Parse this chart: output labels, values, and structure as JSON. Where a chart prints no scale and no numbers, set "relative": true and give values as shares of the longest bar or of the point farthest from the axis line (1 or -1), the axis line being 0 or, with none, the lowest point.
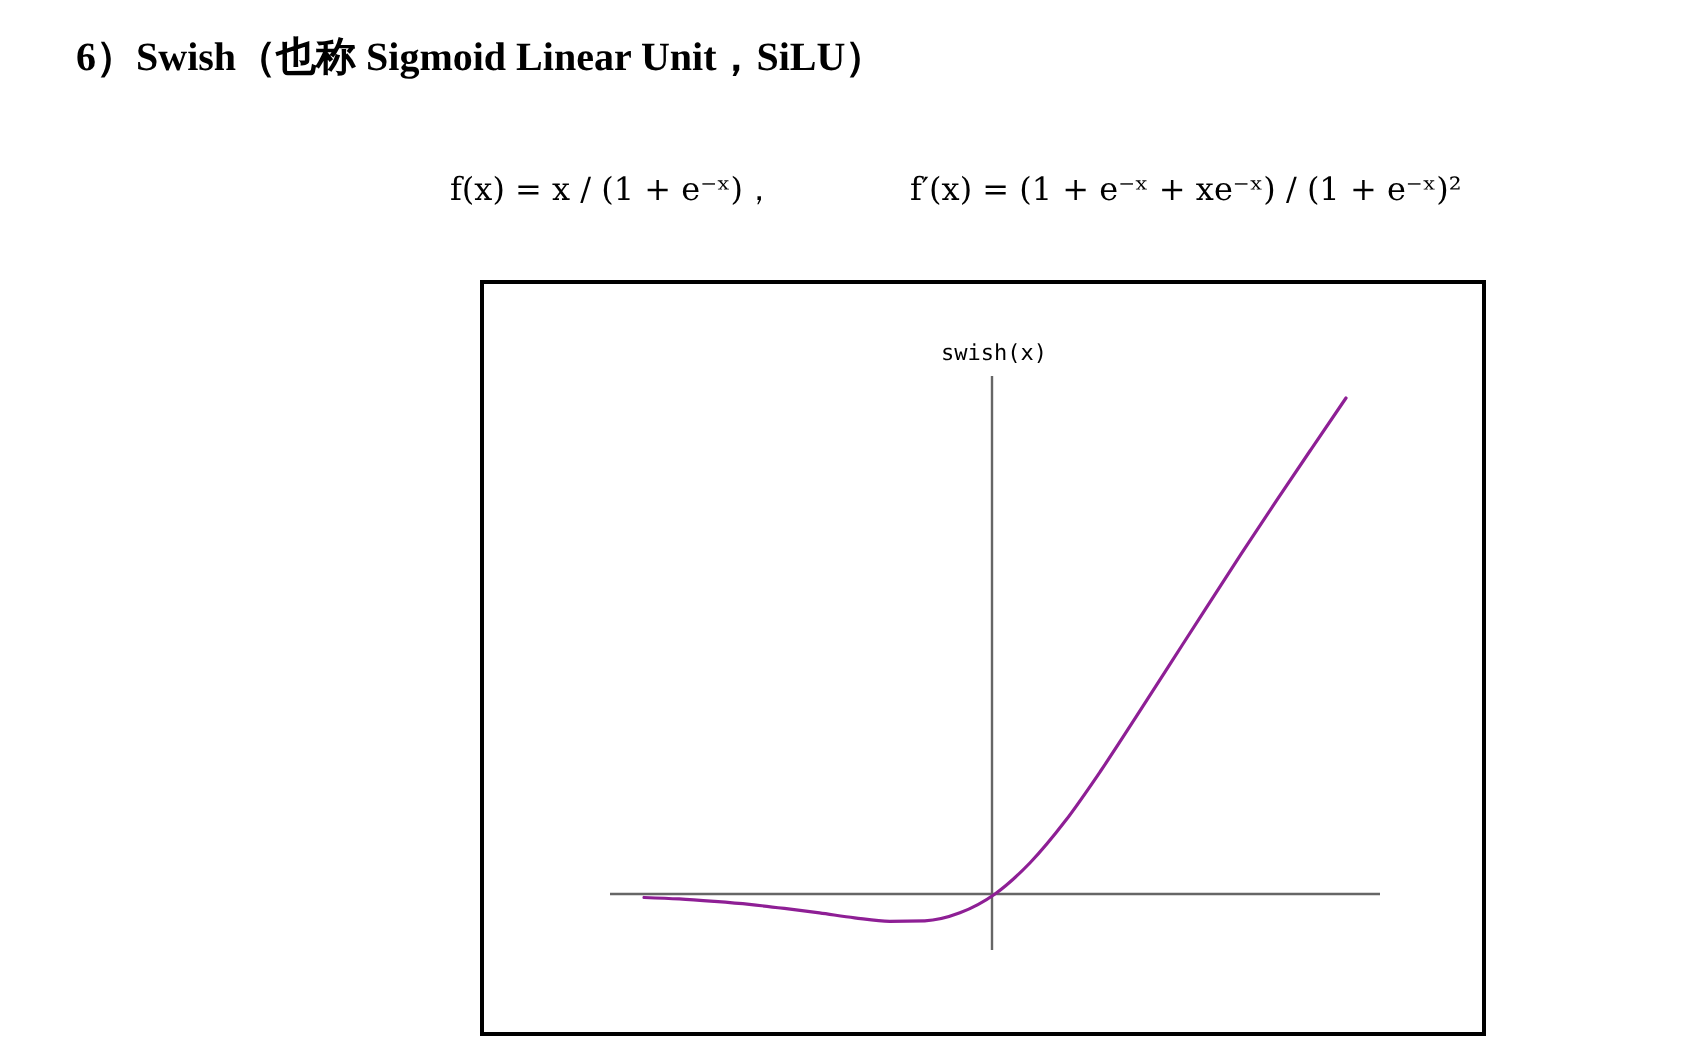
{
  "chart_data": {
    "type": "line",
    "title": "6）Swish（也称 Sigmoid Linear Unit，SiLU）",
    "annotations": [
      "f(x) = x / (1 + e⁻ˣ)，",
      "f′(x) = (1 + e⁻ˣ + xe⁻ˣ) / (1 + e⁻ˣ)²"
    ],
    "ylabel": "swish(x)",
    "relative": true,
    "color": "#8e1f95",
    "categories": [
      null,
      null,
      null,
      null,
      null,
      null,
      null,
      null,
      null,
      null,
      null,
      null,
      null,
      null,
      null,
      null,
      null,
      null,
      null,
      null,
      null
    ],
    "values": [
      -0.007,
      -0.01,
      -0.015,
      -0.021,
      -0.029,
      -0.038,
      -0.048,
      -0.055,
      -0.054,
      -0.038,
      0,
      0.063,
      0.147,
      0.247,
      0.355,
      0.465,
      0.575,
      0.684,
      0.791,
      0.896,
      1
    ]
  }
}
